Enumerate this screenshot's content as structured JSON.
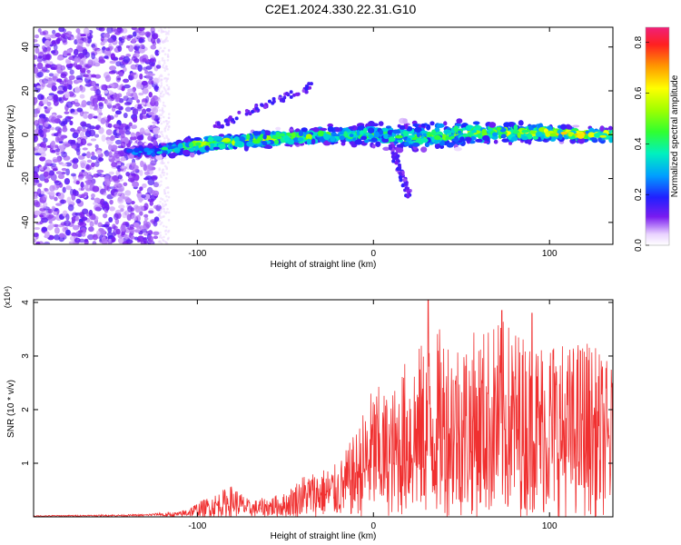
{
  "title": "C2E1.2024.330.22.31.G10",
  "chart_data": [
    {
      "type": "heatmap",
      "title": "C2E1.2024.330.22.31.G10",
      "xlabel": "Height of straight line (km)",
      "ylabel": "Frequency (Hz)",
      "xlim": [
        -193,
        136
      ],
      "ylim": [
        -50,
        49
      ],
      "x_ticks": [
        -100,
        0,
        100
      ],
      "x_tick_labels": [
        "-100",
        "0",
        "100"
      ],
      "y_ticks": [
        -40,
        -20,
        0,
        20,
        40
      ],
      "y_tick_labels": [
        "-40",
        "-20",
        "0",
        "20",
        "40"
      ],
      "colorbar": {
        "label": "Normalized spectral amplitude",
        "range": [
          0.0,
          0.86
        ],
        "ticks": [
          0.0,
          0.2,
          0.4,
          0.6,
          0.8
        ],
        "tick_labels": [
          "0.0",
          "0.2",
          "0.4",
          "0.6",
          "0.8"
        ]
      },
      "noise_region": {
        "x_range": [
          -193,
          -122
        ],
        "freq_range": [
          -50,
          49
        ],
        "amplitude": [
          0.05,
          0.15
        ]
      },
      "band": [
        {
          "x": -140,
          "freq_center": -8,
          "half_width": 3,
          "amplitude": 0.18
        },
        {
          "x": -120,
          "freq_center": -7,
          "half_width": 4,
          "amplitude": 0.35
        },
        {
          "x": -100,
          "freq_center": -5,
          "half_width": 5,
          "amplitude": 0.55
        },
        {
          "x": -80,
          "freq_center": -3,
          "half_width": 5,
          "amplitude": 0.5
        },
        {
          "x": -60,
          "freq_center": -2,
          "half_width": 5,
          "amplitude": 0.5
        },
        {
          "x": -40,
          "freq_center": -1,
          "half_width": 5,
          "amplitude": 0.45
        },
        {
          "x": -20,
          "freq_center": 0,
          "half_width": 6,
          "amplitude": 0.4
        },
        {
          "x": 0,
          "freq_center": 0,
          "half_width": 7,
          "amplitude": 0.4
        },
        {
          "x": 20,
          "freq_center": -1,
          "half_width": 9,
          "amplitude": 0.4
        },
        {
          "x": 40,
          "freq_center": 0,
          "half_width": 8,
          "amplitude": 0.45
        },
        {
          "x": 60,
          "freq_center": 1,
          "half_width": 7,
          "amplitude": 0.45
        },
        {
          "x": 80,
          "freq_center": 1,
          "half_width": 6,
          "amplitude": 0.5
        },
        {
          "x": 100,
          "freq_center": 1,
          "half_width": 5,
          "amplitude": 0.55
        },
        {
          "x": 120,
          "freq_center": 0,
          "half_width": 4,
          "amplitude": 0.6
        },
        {
          "x": 136,
          "freq_center": 0,
          "half_width": 4,
          "amplitude": 0.6
        }
      ],
      "features": [
        {
          "name": "upper-streak",
          "from": [
            -90,
            4
          ],
          "to": [
            -35,
            22
          ],
          "amplitude": 0.15
        },
        {
          "name": "lower-spike",
          "from": [
            10,
            -5
          ],
          "to": [
            20,
            -28
          ],
          "amplitude": 0.15
        }
      ]
    },
    {
      "type": "line",
      "xlabel": "Height of straight line (km)",
      "ylabel": "SNR (10 * v/v)",
      "y_multiplier": "(x10⁴)",
      "xlim": [
        -193,
        136
      ],
      "ylim": [
        0,
        4.05
      ],
      "x_ticks": [
        -100,
        0,
        100
      ],
      "x_tick_labels": [
        "-100",
        "0",
        "100"
      ],
      "y_ticks": [
        1,
        2,
        3,
        4
      ],
      "y_tick_labels": [
        "1",
        "2",
        "3",
        "4"
      ],
      "color": "#f03030",
      "envelope": [
        {
          "x": -193,
          "y": 0.02
        },
        {
          "x": -130,
          "y": 0.04
        },
        {
          "x": -110,
          "y": 0.1
        },
        {
          "x": -95,
          "y": 0.35
        },
        {
          "x": -80,
          "y": 0.6
        },
        {
          "x": -70,
          "y": 0.3
        },
        {
          "x": -50,
          "y": 0.45
        },
        {
          "x": -40,
          "y": 0.8
        },
        {
          "x": -20,
          "y": 1.0
        },
        {
          "x": -10,
          "y": 1.6
        },
        {
          "x": 0,
          "y": 2.5
        },
        {
          "x": 10,
          "y": 2.3
        },
        {
          "x": 20,
          "y": 3.1
        },
        {
          "x": 30,
          "y": 3.3
        },
        {
          "x": 40,
          "y": 3.6
        },
        {
          "x": 50,
          "y": 3.4
        },
        {
          "x": 60,
          "y": 3.5
        },
        {
          "x": 70,
          "y": 3.7
        },
        {
          "x": 80,
          "y": 3.6
        },
        {
          "x": 90,
          "y": 3.3
        },
        {
          "x": 100,
          "y": 3.5
        },
        {
          "x": 110,
          "y": 3.2
        },
        {
          "x": 120,
          "y": 3.4
        },
        {
          "x": 136,
          "y": 2.8
        }
      ],
      "peaks": [
        {
          "x": 31,
          "y": 4.05
        },
        {
          "x": 73,
          "y": 3.85
        },
        {
          "x": 90,
          "y": 3.8
        }
      ]
    }
  ],
  "colors": {
    "noise_purple": "#7a2cf0",
    "snr_line": "#f03030"
  }
}
